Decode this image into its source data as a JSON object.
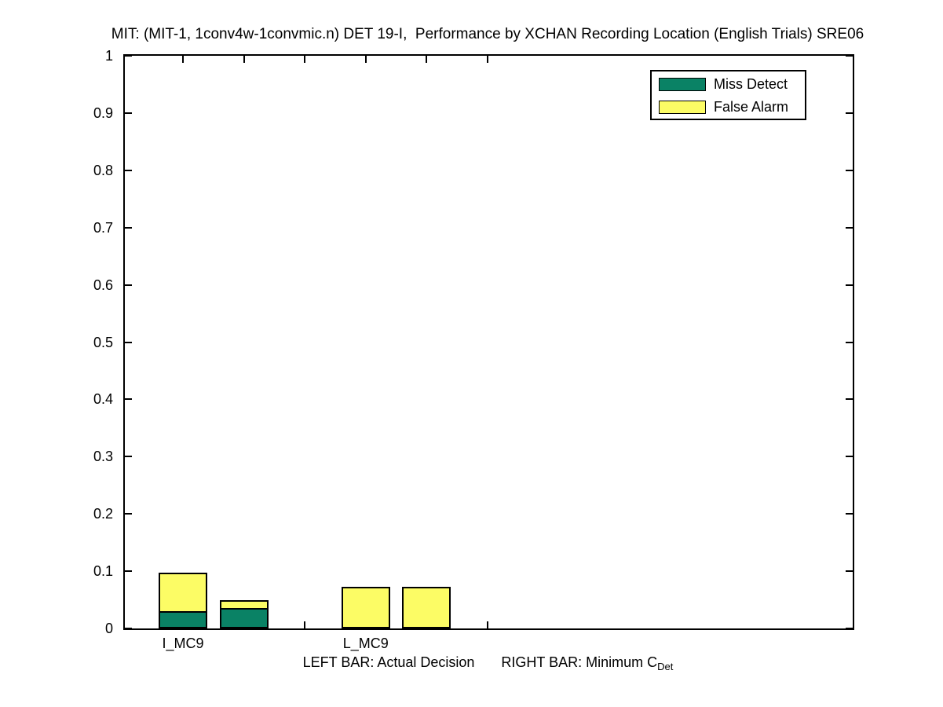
{
  "chart_data": {
    "type": "bar",
    "title": "MIT: (MIT-1, 1conv4w-1convmic.n) DET 19-I,  Performance by XCHAN Recording Location (English Trials) SRE06",
    "caption": {
      "left_bar_text": "LEFT BAR: Actual Decision",
      "right_bar_text": "RIGHT BAR: Minimum C",
      "right_bar_subscript": "Det"
    },
    "y_axis": {
      "min": 0,
      "max": 1,
      "ticks": [
        0,
        0.1,
        0.2,
        0.3,
        0.4,
        0.5,
        0.6,
        0.7,
        0.8,
        0.9,
        1
      ],
      "tick_labels": [
        "0",
        "0.1",
        "0.2",
        "0.3",
        "0.4",
        "0.5",
        "0.6",
        "0.7",
        "0.8",
        "0.9",
        "1"
      ]
    },
    "x_axis": {
      "tick_labels": [
        "I_MC9",
        "",
        "",
        "L_MC9",
        "",
        ""
      ]
    },
    "grid": false,
    "legend": {
      "position": "top-right-inside",
      "items": [
        {
          "label": "Miss Detect",
          "color": "#0A8265"
        },
        {
          "label": "False Alarm",
          "color": "#FCFC65"
        }
      ]
    },
    "series_colors": {
      "miss_detect": "#0A8265",
      "false_alarm": "#FCFC65"
    },
    "groups": [
      {
        "category": "I_MC9",
        "bars": [
          {
            "bar": "actual_decision",
            "tick": 1,
            "miss_detect": 0.03,
            "false_alarm": 0.067,
            "total": 0.097
          },
          {
            "bar": "minimum_cdet",
            "tick": 2,
            "miss_detect": 0.036,
            "false_alarm": 0.014,
            "total": 0.05
          }
        ]
      },
      {
        "category": "L_MC9",
        "bars": [
          {
            "bar": "actual_decision",
            "tick": 4,
            "miss_detect": 0.0,
            "false_alarm": 0.073,
            "total": 0.073
          },
          {
            "bar": "minimum_cdet",
            "tick": 5,
            "miss_detect": 0.0,
            "false_alarm": 0.073,
            "total": 0.073
          }
        ]
      }
    ]
  }
}
